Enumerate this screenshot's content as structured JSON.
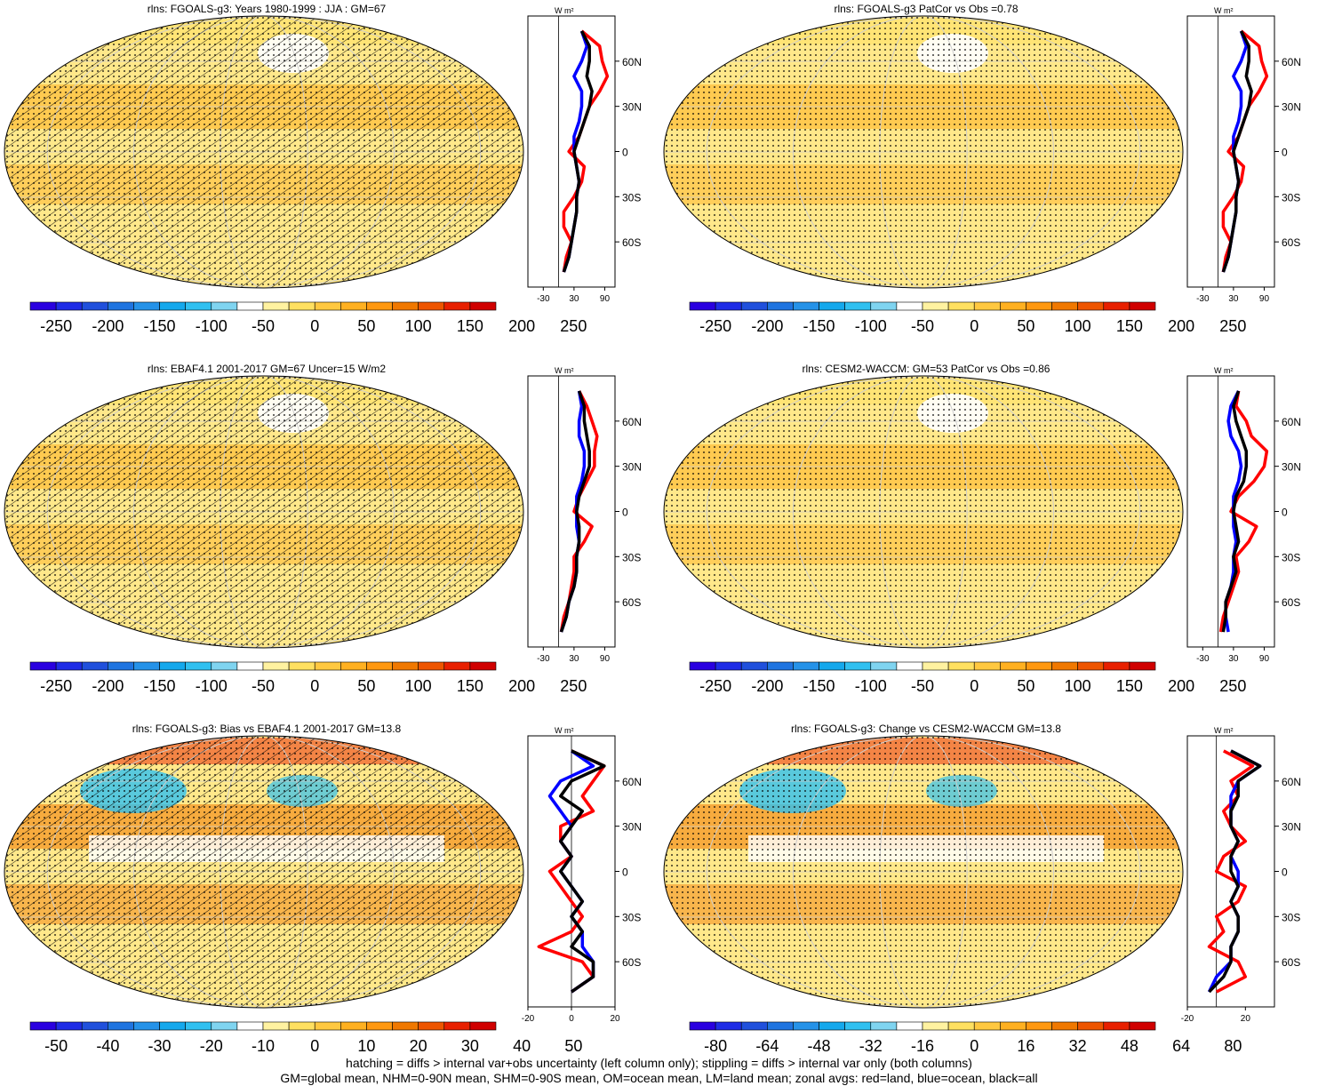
{
  "footer": {
    "line1": "hatching = diffs > internal var+obs uncertainty (left column only); stippling = diffs > internal var only (both columns)",
    "line2": "GM=global mean, NHM=0-90N mean, SHM=0-90S mean, OM=ocean mean, LM=land mean; zonal avgs: red=land, blue=ocean, black=all"
  },
  "colors": {
    "land": "#ff0000",
    "ocean": "#0000ff",
    "all": "#000000",
    "ocean_fill": "#ffe88a",
    "cb_neg": [
      "#2a00e0",
      "#1f2ce6",
      "#2050dc",
      "#1f74e0",
      "#2592e8",
      "#14a8ec",
      "#30c0f0",
      "#7fd4f0"
    ],
    "cb_pos": [
      "#ffffff",
      "#fff2a0",
      "#ffe060",
      "#ffc840",
      "#ffb020",
      "#ff9810",
      "#f07800",
      "#ee5500",
      "#e82000",
      "#d00000"
    ]
  },
  "panels": [
    {
      "title": "rlns: FGOALS-g3: Years 1980-1999 : JJA : GM=67",
      "hatched": true,
      "colorbar": [
        "-250",
        "-200",
        "-150",
        "-100",
        "-50",
        "0",
        "50",
        "100",
        "150",
        "200",
        "250"
      ],
      "zonal_xticks": [
        "-30",
        "30",
        "90"
      ],
      "zonal_unit": "W m²"
    },
    {
      "title": "rlns: FGOALS-g3 PatCor vs Obs =0.78",
      "hatched": false,
      "colorbar": [
        "-250",
        "-200",
        "-150",
        "-100",
        "-50",
        "0",
        "50",
        "100",
        "150",
        "200",
        "250"
      ],
      "zonal_xticks": [
        "-30",
        "30",
        "90"
      ],
      "zonal_unit": "W m²"
    },
    {
      "title": "rlns: EBAF4.1 2001-2017 GM=67 Uncer=15 W/m2",
      "hatched": true,
      "colorbar": [
        "-250",
        "-200",
        "-150",
        "-100",
        "-50",
        "0",
        "50",
        "100",
        "150",
        "200",
        "250"
      ],
      "zonal_xticks": [
        "-30",
        "30",
        "90"
      ],
      "zonal_unit": "W m²"
    },
    {
      "title": "rlns: CESM2-WACCM: GM=53 PatCor vs Obs =0.86",
      "hatched": false,
      "colorbar": [
        "-250",
        "-200",
        "-150",
        "-100",
        "-50",
        "0",
        "50",
        "100",
        "150",
        "200",
        "250"
      ],
      "zonal_xticks": [
        "-30",
        "30",
        "90"
      ],
      "zonal_unit": "W m²"
    },
    {
      "title": "rlns: FGOALS-g3: Bias vs EBAF4.1 2001-2017 GM=13.8",
      "hatched": true,
      "colorbar": [
        "-50",
        "-40",
        "-30",
        "-20",
        "-10",
        "0",
        "10",
        "20",
        "30",
        "40",
        "50"
      ],
      "zonal_xticks": [
        "-20",
        "0",
        "20"
      ],
      "zonal_unit": "W m²"
    },
    {
      "title": "rlns: FGOALS-g3: Change vs CESM2-WACCM GM=13.8",
      "hatched": false,
      "colorbar": [
        "-80",
        "-64",
        "-48",
        "-32",
        "-16",
        "0",
        "16",
        "32",
        "48",
        "64",
        "80"
      ],
      "zonal_xticks": [
        "-20",
        "20"
      ],
      "zonal_unit": "W m²"
    }
  ],
  "chart_data": [
    {
      "type": "line",
      "title": "rlns: FGOALS-g3: Years 1980-1999 : JJA : GM=67",
      "ylabel_ticks": [
        "60N",
        "30N",
        "0",
        "30S",
        "60S"
      ],
      "lat": [
        80,
        70,
        60,
        50,
        40,
        30,
        20,
        10,
        0,
        -10,
        -20,
        -30,
        -40,
        -50,
        -60,
        -70,
        -80
      ],
      "xlim": [
        -60,
        110
      ],
      "series": [
        {
          "name": "land",
          "values": [
            45,
            80,
            85,
            95,
            80,
            60,
            50,
            40,
            20,
            50,
            45,
            30,
            10,
            10,
            25,
            15,
            10
          ]
        },
        {
          "name": "ocean",
          "values": [
            45,
            55,
            45,
            30,
            45,
            45,
            40,
            30,
            30,
            35,
            40,
            35,
            35,
            30,
            25,
            20,
            10
          ]
        },
        {
          "name": "all",
          "values": [
            45,
            60,
            60,
            55,
            65,
            60,
            50,
            40,
            30,
            35,
            40,
            35,
            35,
            30,
            25,
            20,
            10
          ]
        }
      ]
    },
    {
      "type": "line",
      "title": "rlns: FGOALS-g3 PatCor vs Obs =0.78",
      "ylabel_ticks": [
        "60N",
        "30N",
        "0",
        "30S",
        "60S"
      ],
      "lat": [
        80,
        70,
        60,
        50,
        40,
        30,
        20,
        10,
        0,
        -10,
        -20,
        -30,
        -40,
        -50,
        -60,
        -70,
        -80
      ],
      "xlim": [
        -60,
        110
      ],
      "series": [
        {
          "name": "land",
          "values": [
            45,
            80,
            85,
            95,
            80,
            60,
            50,
            40,
            20,
            50,
            45,
            30,
            10,
            10,
            25,
            15,
            10
          ]
        },
        {
          "name": "ocean",
          "values": [
            45,
            55,
            45,
            30,
            45,
            45,
            40,
            30,
            30,
            35,
            40,
            35,
            35,
            30,
            25,
            20,
            10
          ]
        },
        {
          "name": "all",
          "values": [
            45,
            60,
            60,
            55,
            65,
            60,
            50,
            40,
            30,
            35,
            40,
            35,
            35,
            30,
            25,
            20,
            10
          ]
        }
      ]
    },
    {
      "type": "line",
      "title": "rlns: EBAF4.1 2001-2017 GM=67 Uncer=15 W/m2",
      "ylabel_ticks": [
        "60N",
        "30N",
        "0",
        "30S",
        "60S"
      ],
      "lat": [
        80,
        70,
        60,
        50,
        40,
        30,
        20,
        10,
        0,
        -10,
        -20,
        -30,
        -40,
        -50,
        -60,
        -70,
        -80
      ],
      "xlim": [
        -60,
        110
      ],
      "series": [
        {
          "name": "land",
          "values": [
            40,
            55,
            65,
            75,
            70,
            70,
            55,
            40,
            30,
            65,
            50,
            30,
            30,
            25,
            20,
            10,
            5
          ]
        },
        {
          "name": "ocean",
          "values": [
            40,
            45,
            40,
            40,
            50,
            50,
            45,
            35,
            35,
            35,
            40,
            35,
            35,
            30,
            20,
            15,
            5
          ]
        },
        {
          "name": "all",
          "values": [
            40,
            50,
            50,
            55,
            60,
            60,
            50,
            40,
            35,
            40,
            40,
            35,
            35,
            30,
            20,
            15,
            5
          ]
        }
      ]
    },
    {
      "type": "line",
      "title": "rlns: CESM2-WACCM: GM=53 PatCor vs Obs =0.86",
      "ylabel_ticks": [
        "60N",
        "30N",
        "0",
        "30S",
        "60S"
      ],
      "lat": [
        80,
        70,
        60,
        50,
        40,
        30,
        20,
        10,
        0,
        -10,
        -20,
        -30,
        -40,
        -50,
        -60,
        -70,
        -80
      ],
      "xlim": [
        -60,
        110
      ],
      "series": [
        {
          "name": "land",
          "values": [
            40,
            35,
            55,
            65,
            95,
            90,
            70,
            40,
            25,
            75,
            60,
            35,
            40,
            30,
            20,
            10,
            5
          ]
        },
        {
          "name": "ocean",
          "values": [
            40,
            25,
            20,
            25,
            40,
            45,
            40,
            30,
            30,
            30,
            35,
            30,
            30,
            25,
            15,
            15,
            20
          ]
        },
        {
          "name": "all",
          "values": [
            40,
            30,
            35,
            45,
            55,
            55,
            50,
            35,
            30,
            35,
            40,
            30,
            35,
            25,
            15,
            15,
            10
          ]
        }
      ]
    },
    {
      "type": "line",
      "title": "rlns: FGOALS-g3: Bias vs EBAF4.1 2001-2017 GM=13.8",
      "ylabel_ticks": [
        "60N",
        "30N",
        "0",
        "30S",
        "60S"
      ],
      "lat": [
        80,
        70,
        60,
        50,
        40,
        30,
        20,
        10,
        0,
        -10,
        -20,
        -30,
        -40,
        -50,
        -60,
        -70,
        -80
      ],
      "xlim": [
        -20,
        20
      ],
      "series": [
        {
          "name": "land",
          "values": [
            0,
            15,
            10,
            5,
            10,
            -5,
            -5,
            0,
            -10,
            -5,
            0,
            5,
            0,
            -15,
            5,
            10,
            0
          ]
        },
        {
          "name": "ocean",
          "values": [
            0,
            10,
            -5,
            -10,
            -5,
            0,
            -5,
            0,
            -5,
            0,
            5,
            0,
            5,
            5,
            10,
            10,
            0
          ]
        },
        {
          "name": "all",
          "values": [
            0,
            15,
            0,
            -5,
            5,
            0,
            -5,
            0,
            -5,
            0,
            5,
            0,
            5,
            0,
            10,
            10,
            0
          ]
        }
      ]
    },
    {
      "type": "line",
      "title": "rlns: FGOALS-g3: Change vs CESM2-WACCM GM=13.8",
      "ylabel_ticks": [
        "60N",
        "30N",
        "0",
        "30S",
        "60S"
      ],
      "lat": [
        80,
        70,
        60,
        50,
        40,
        30,
        20,
        10,
        0,
        -10,
        -20,
        -30,
        -40,
        -50,
        -60,
        -70,
        -80
      ],
      "xlim": [
        -20,
        40
      ],
      "series": [
        {
          "name": "land",
          "values": [
            5,
            25,
            10,
            15,
            5,
            10,
            20,
            5,
            0,
            20,
            15,
            0,
            5,
            -5,
            15,
            20,
            0
          ]
        },
        {
          "name": "ocean",
          "values": [
            10,
            30,
            15,
            10,
            10,
            10,
            15,
            10,
            15,
            15,
            10,
            15,
            15,
            10,
            10,
            0,
            -5
          ]
        },
        {
          "name": "all",
          "values": [
            10,
            30,
            15,
            15,
            10,
            10,
            15,
            10,
            10,
            15,
            10,
            15,
            15,
            10,
            10,
            5,
            -5
          ]
        }
      ]
    }
  ]
}
